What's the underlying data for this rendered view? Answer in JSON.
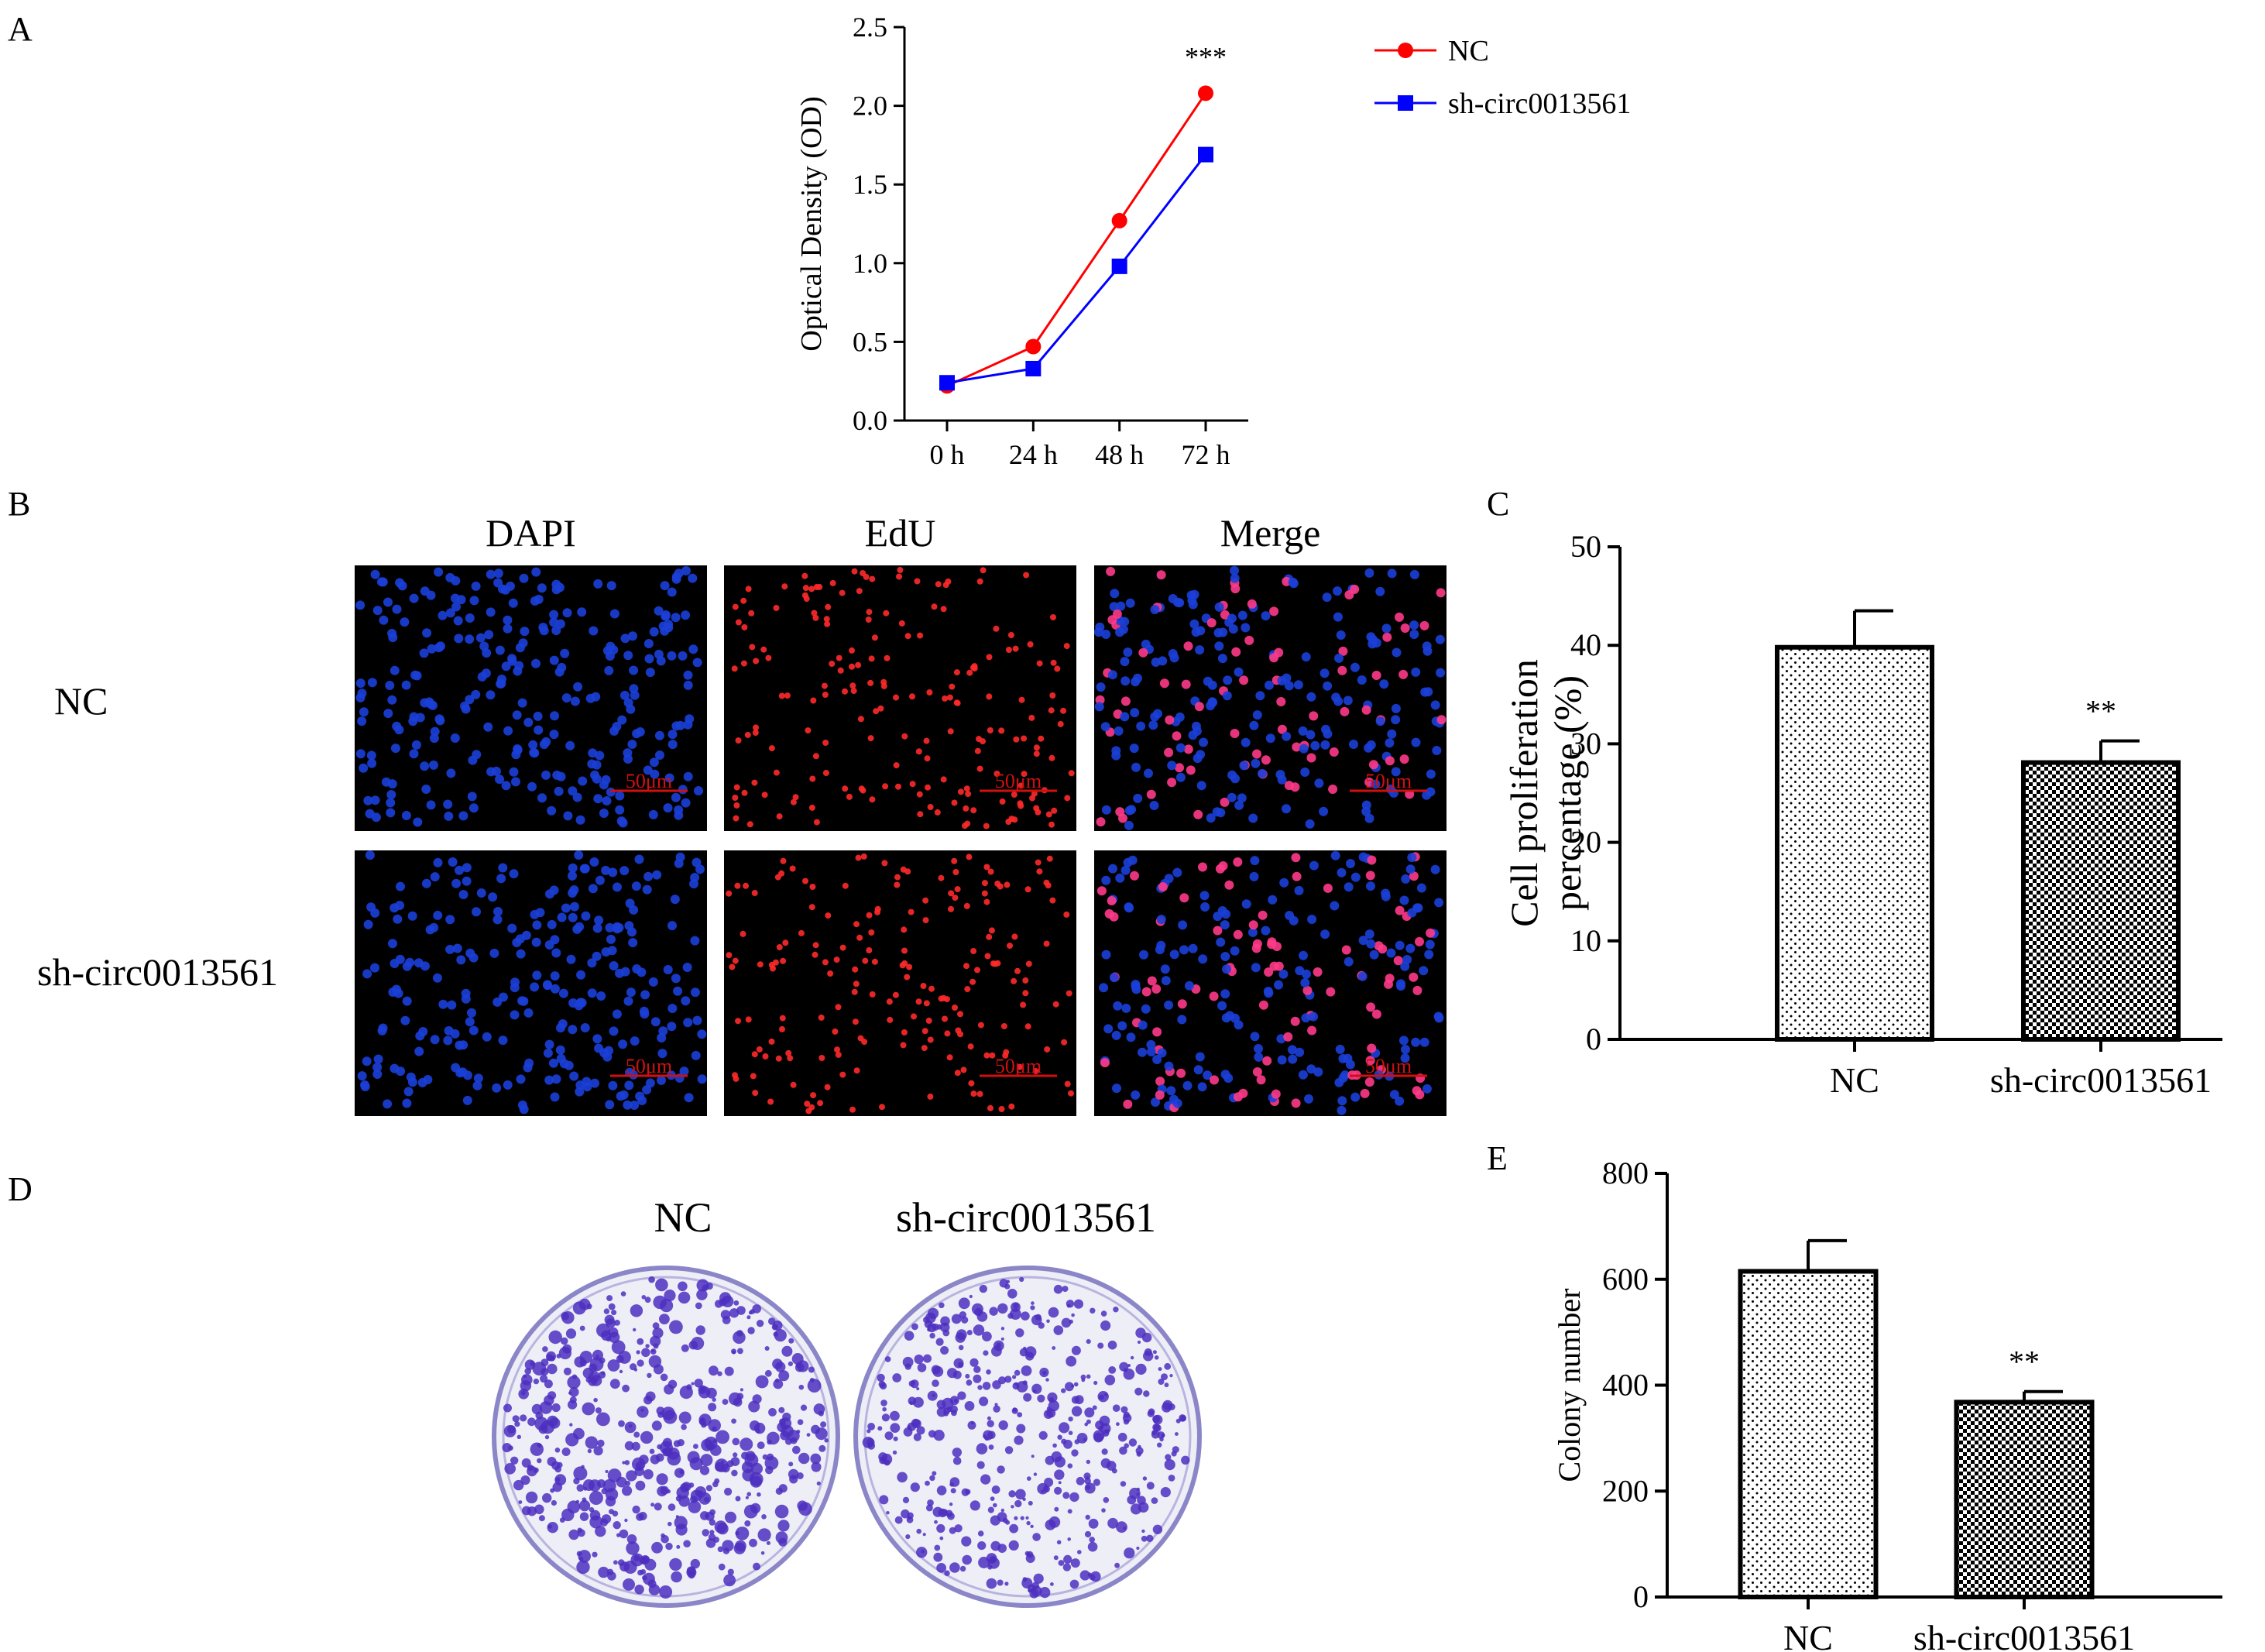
{
  "panels": {
    "a": "A",
    "b": "B",
    "c": "C",
    "d": "D",
    "e": "E"
  },
  "colors": {
    "nc_line": "#ff0000",
    "sh_line": "#0000ff",
    "dapi": "#1b3fd8",
    "edu": "#ff2a2a",
    "crystal_violet": "#4c2fc0",
    "scale_bar": "#d01010"
  },
  "chart_data": [
    {
      "type": "line",
      "panel": "A",
      "x": [
        "0 h",
        "24 h",
        "48 h",
        "72 h"
      ],
      "series": [
        {
          "name": "NC",
          "marker": "circle",
          "color": "#ff0000",
          "values": [
            0.22,
            0.47,
            1.27,
            2.08
          ]
        },
        {
          "name": "sh-circ0013561",
          "marker": "square",
          "color": "#0000ff",
          "values": [
            0.24,
            0.33,
            0.98,
            1.69
          ]
        }
      ],
      "ylabel": "Optical Density (OD)",
      "ylim": [
        0,
        2.5
      ],
      "yticks": [
        "0.0",
        "0.5",
        "1.0",
        "1.5",
        "2.0",
        "2.5"
      ],
      "annotation": "***",
      "legend": "right"
    },
    {
      "type": "bar",
      "panel": "C",
      "categories": [
        "NC",
        "sh-circ0013561"
      ],
      "values": [
        39.8,
        28.1
      ],
      "errors": [
        3.7,
        2.2
      ],
      "ylabel": [
        "Cell proliferation",
        "percentage (%)"
      ],
      "ylim": [
        0,
        50
      ],
      "yticks": [
        "0",
        "10",
        "20",
        "30",
        "40",
        "50"
      ],
      "annotation": "**"
    },
    {
      "type": "bar",
      "panel": "E",
      "categories": [
        "NC",
        "sh-circ0013561"
      ],
      "values": [
        615,
        368
      ],
      "errors": [
        58,
        20
      ],
      "ylabel": "Colony number",
      "ylim": [
        0,
        800
      ],
      "yticks": [
        "0",
        "200",
        "400",
        "600",
        "800"
      ],
      "annotation": "**"
    }
  ],
  "edu_panel": {
    "columns": [
      "DAPI",
      "EdU",
      "Merge"
    ],
    "rows": [
      "NC",
      "sh-circ0013561"
    ],
    "scale_bar": "50μm"
  },
  "colony_panel": {
    "labels": [
      "NC",
      "sh-circ0013561"
    ]
  }
}
